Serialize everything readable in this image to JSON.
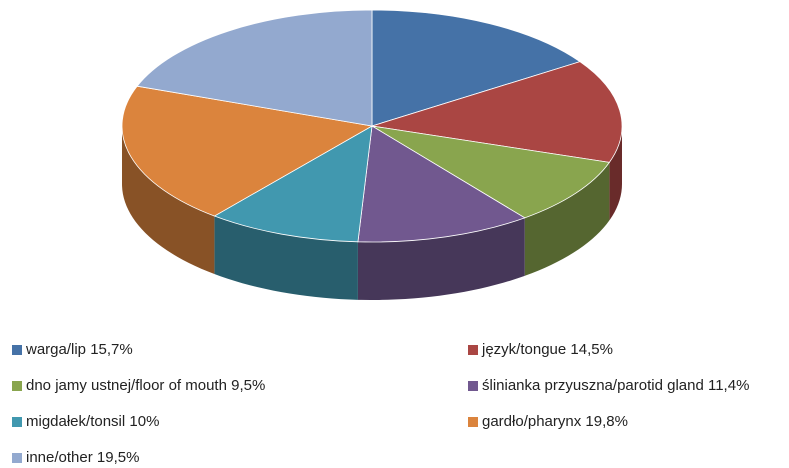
{
  "chart_data": {
    "type": "pie",
    "categories": [
      "warga/lip",
      "język/tongue",
      "dno jamy ustnej/floor of mouth",
      "ślinianka przyuszna/parotid gland",
      "migdałek/tonsil",
      "gardło/pharynx",
      "inne/other"
    ],
    "values": [
      15.7,
      14.5,
      9.5,
      11.4,
      10,
      19.8,
      19.5
    ],
    "value_labels": [
      "15,7%",
      "14,5%",
      "9,5%",
      "11,4%",
      "10%",
      "19,8%",
      "19,5%"
    ],
    "colors": [
      "#4572a7",
      "#aa4643",
      "#89a54e",
      "#71588f",
      "#4198af",
      "#db843d",
      "#93a9cf"
    ],
    "legend": "bottom"
  }
}
